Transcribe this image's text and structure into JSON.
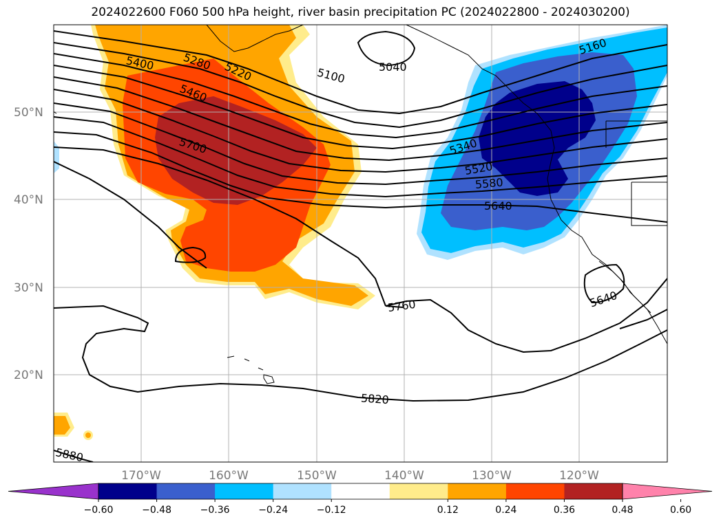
{
  "title": "2024022600 F060 500 hPa height, river basin precipitation PC (2024022800 - 2024030200)",
  "latitude_labels": [
    "50°N",
    "40°N",
    "30°N",
    "20°N"
  ],
  "longitude_labels": [
    "170°W",
    "160°W",
    "150°W",
    "140°W",
    "130°W",
    "120°W"
  ],
  "height_contour_labels": [
    "5040",
    "5100",
    "5160",
    "5220",
    "5280",
    "5340",
    "5400",
    "5460",
    "5520",
    "5580",
    "5640",
    "5640",
    "5700",
    "5760",
    "5820",
    "5880"
  ],
  "colorbar": {
    "ticks": [
      "−0.60",
      "−0.48",
      "−0.36",
      "−0.24",
      "−0.12",
      "0.12",
      "0.24",
      "0.36",
      "0.48",
      "0.60"
    ],
    "colors": [
      "#9932cc",
      "#00008b",
      "#3a5fcd",
      "#00bfff",
      "#b0e2ff",
      "#ffffff",
      "#ffec8b",
      "#ffa500",
      "#ff4500",
      "#b22222",
      "#ff82ab"
    ]
  }
}
